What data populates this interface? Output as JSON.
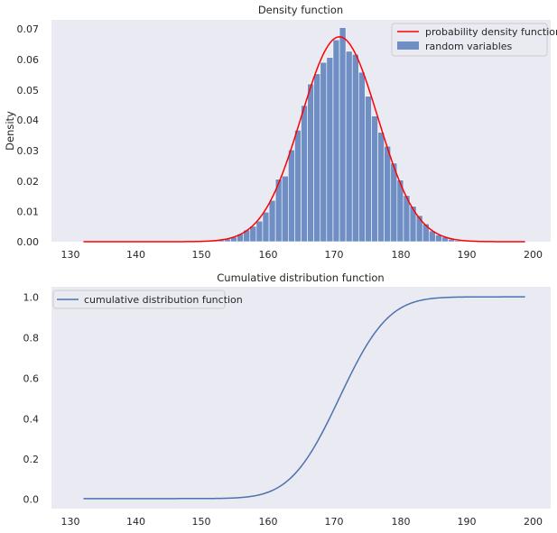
{
  "chart_data": [
    {
      "type": "bar",
      "title": "Density function",
      "xlabel": "",
      "ylabel": "Density",
      "xlim": [
        125,
        203
      ],
      "ylim": [
        0,
        0.072
      ],
      "xticks": [
        "130",
        "140",
        "150",
        "160",
        "170",
        "180",
        "190",
        "200"
      ],
      "yticks": [
        "0.00",
        "0.01",
        "0.02",
        "0.03",
        "0.04",
        "0.05",
        "0.06",
        "0.07"
      ],
      "grid": false,
      "legend_position": "top-right",
      "series": [
        {
          "name": "probability density function",
          "kind": "line",
          "color": "#ff0000",
          "distribution": "normal",
          "mean": 170,
          "std": 6,
          "x_range": [
            130,
            199
          ]
        },
        {
          "name": "random variables",
          "kind": "histogram",
          "color": "#6f8fc4",
          "bin_start": 150,
          "bin_width": 1,
          "values": [
            0.0003,
            0.0005,
            0.0009,
            0.0015,
            0.0025,
            0.0038,
            0.005,
            0.0067,
            0.0096,
            0.0134,
            0.0203,
            0.0213,
            0.0298,
            0.0362,
            0.0442,
            0.0512,
            0.0545,
            0.0582,
            0.0598,
            0.0655,
            0.0695,
            0.0618,
            0.0608,
            0.055,
            0.0472,
            0.0408,
            0.0355,
            0.031,
            0.0255,
            0.02,
            0.015,
            0.0115,
            0.0085,
            0.0058,
            0.0035,
            0.0022,
            0.0015,
            0.0008,
            0.0004
          ]
        }
      ]
    },
    {
      "type": "line",
      "title": "Cumulative distribution function",
      "xlabel": "",
      "ylabel": "",
      "xlim": [
        125,
        203
      ],
      "ylim": [
        -0.05,
        1.05
      ],
      "xticks": [
        "130",
        "140",
        "150",
        "160",
        "170",
        "180",
        "190",
        "200"
      ],
      "yticks": [
        "0.0",
        "0.2",
        "0.4",
        "0.6",
        "0.8",
        "1.0"
      ],
      "grid": false,
      "legend_position": "top-left",
      "series": [
        {
          "name": "cumulative distribution function",
          "kind": "line",
          "color": "#4c72b0",
          "distribution": "normal",
          "mean": 170,
          "std": 6,
          "x_range": [
            130,
            199
          ]
        }
      ]
    }
  ]
}
